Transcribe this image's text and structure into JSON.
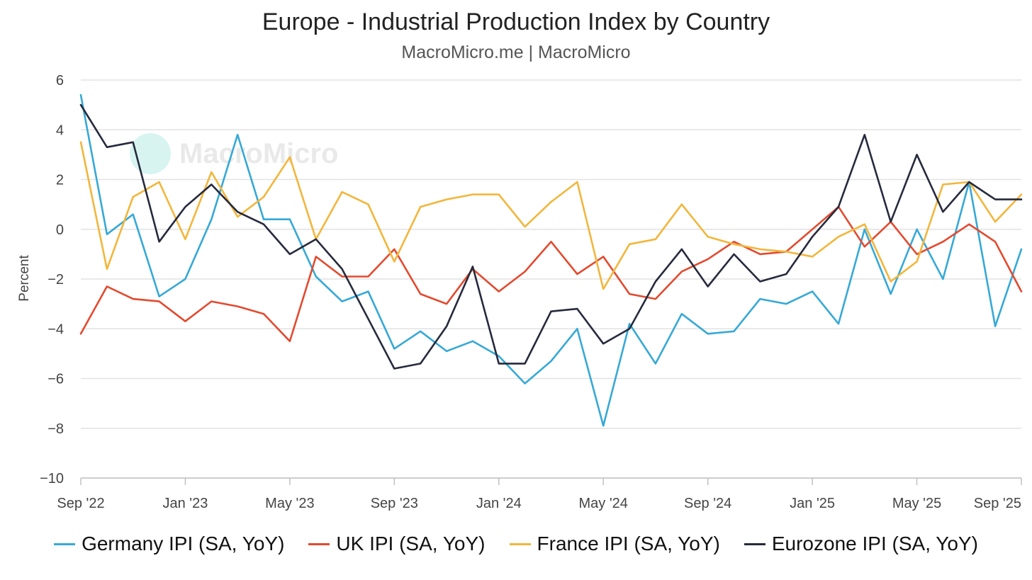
{
  "header": {
    "title": "Europe - Industrial Production Index by Country",
    "subtitle": "MacroMicro.me | MacroMicro"
  },
  "watermark": {
    "text": "MacroMicro",
    "icon": "macromicro-logo-icon"
  },
  "colors": {
    "germany": "#36a9d6",
    "uk": "#e34a2f",
    "france": "#f2b63b",
    "eurozone": "#262a3d",
    "grid": "#e2e2e2",
    "watermark": "#26c6b4"
  },
  "chart_data": {
    "type": "line",
    "title": "Europe - Industrial Production Index by Country",
    "xlabel": "",
    "ylabel": "Percent",
    "ylim": [
      -10,
      6
    ],
    "yticks": [
      "6",
      "4",
      "2",
      "0",
      "-2",
      "-4",
      "-6",
      "-8",
      "-10"
    ],
    "grid": true,
    "legend_position": "bottom",
    "x_start": "Sep '22",
    "x_end": "Sep '25",
    "x_ticks": [
      {
        "label": "Sep '22",
        "index": 0
      },
      {
        "label": "Jan '23",
        "index": 4
      },
      {
        "label": "May '23",
        "index": 8
      },
      {
        "label": "Sep '23",
        "index": 12
      },
      {
        "label": "Jan '24",
        "index": 16
      },
      {
        "label": "May '24",
        "index": 20
      },
      {
        "label": "Sep '24",
        "index": 24
      },
      {
        "label": "Jan '25",
        "index": 28
      },
      {
        "label": "May '25",
        "index": 32
      },
      {
        "label": "Sep '25",
        "index": 36
      }
    ],
    "series": [
      {
        "name": "Germany IPI (SA, YoY)",
        "key": "germany",
        "values": [
          5.4,
          -0.2,
          0.6,
          -2.7,
          -2.0,
          0.4,
          3.8,
          0.4,
          0.4,
          -1.9,
          -2.9,
          -2.5,
          -4.8,
          -4.1,
          -4.9,
          -4.5,
          -5.1,
          -6.2,
          -5.3,
          -4.0,
          -7.9,
          -3.8,
          -5.4,
          -3.4,
          -4.2,
          -4.1,
          -2.8,
          -3.0,
          -2.5,
          -3.8,
          0.0,
          -2.6,
          0.0,
          -2.0,
          1.9,
          -3.9,
          -0.8
        ]
      },
      {
        "name": "UK IPI (SA, YoY)",
        "key": "uk",
        "values": [
          -4.2,
          -2.3,
          -2.8,
          -2.9,
          -3.7,
          -2.9,
          -3.1,
          -3.4,
          -4.5,
          -1.1,
          -1.9,
          -1.9,
          -0.8,
          -2.6,
          -3.0,
          -1.6,
          -2.5,
          -1.7,
          -0.5,
          -1.8,
          -1.1,
          -2.6,
          -2.8,
          -1.7,
          -1.2,
          -0.5,
          -1.0,
          -0.9,
          0.0,
          0.9,
          -0.7,
          0.3,
          -1.0,
          -0.5,
          0.2,
          -0.5,
          -2.5
        ]
      },
      {
        "name": "France IPI (SA, YoY)",
        "key": "france",
        "values": [
          3.5,
          -1.6,
          1.3,
          1.9,
          -0.4,
          2.3,
          0.5,
          1.3,
          2.9,
          -0.4,
          1.5,
          1.0,
          -1.3,
          0.9,
          1.2,
          1.4,
          1.4,
          0.1,
          1.1,
          1.9,
          -2.4,
          -0.6,
          -0.4,
          1.0,
          -0.3,
          -0.6,
          -0.8,
          -0.9,
          -1.1,
          -0.3,
          0.2,
          -2.1,
          -1.3,
          1.8,
          1.9,
          0.3,
          1.4
        ]
      },
      {
        "name": "Eurozone IPI (SA, YoY)",
        "key": "eurozone",
        "values": [
          5.0,
          3.3,
          3.5,
          -0.5,
          0.9,
          1.8,
          0.7,
          0.2,
          -1.0,
          -0.4,
          -1.6,
          -3.6,
          -5.6,
          -5.4,
          -3.9,
          -1.5,
          -5.4,
          -5.4,
          -3.3,
          -3.2,
          -4.6,
          -4.0,
          -2.1,
          -0.8,
          -2.3,
          -1.0,
          -2.1,
          -1.8,
          -0.3,
          0.9,
          3.8,
          0.3,
          3.0,
          0.7,
          1.9,
          1.2,
          1.2
        ]
      }
    ]
  }
}
